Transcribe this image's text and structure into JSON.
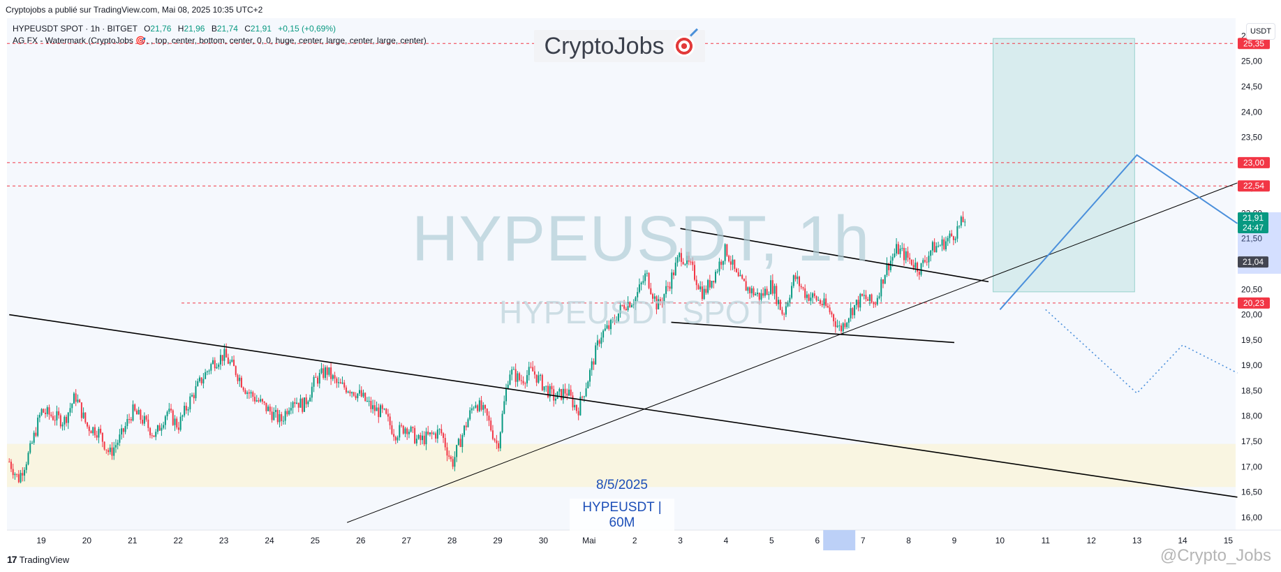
{
  "header": {
    "published": "Cryptojobs a publié sur TradingView.com, Mai 08, 2025 10:35 UTC+2"
  },
  "legend": {
    "symbol": "HYPEUSDT SPOT · 1h · BITGET",
    "open_key": "O",
    "open": "21,76",
    "high_key": "H",
    "high": "21,96",
    "low_key": "B",
    "low": "21,74",
    "close_key": "C",
    "close": "21,91",
    "change": "+0,15 (+0,69%)",
    "indicator": "AG FX - Watermark (CryptoJobs 🎯, , top, center, bottom, center, 0, 0, huge, center, large, center, large, center)"
  },
  "brand": {
    "text": "CryptoJobs",
    "icon": "target-icon"
  },
  "watermark": {
    "main": "HYPEUSDT, 1h",
    "sub": "HYPEUSDT SPOT"
  },
  "notes": {
    "date": "8/5/2025",
    "pair": "HYPEUSDT | 60M"
  },
  "currency_button": "USDT",
  "footer": {
    "logo_mark": "17",
    "logo_text": "TradingView",
    "credit": "@Crypto_Jobs"
  },
  "colors": {
    "up": "#089981",
    "down": "#f23645",
    "level_line": "#f23645",
    "trend_line": "#000000",
    "projection": "#4a8fdb",
    "target_box": "rgba(8,153,129,0.12)",
    "support_zone": "rgba(255,242,190,0.45)",
    "background": "#f5f8fd"
  },
  "chart_data": {
    "type": "candlestick",
    "symbol": "HYPEUSDT",
    "timeframe": "1h",
    "y_axis": {
      "ticks": [
        "16,00",
        "16,50",
        "17,00",
        "17,50",
        "18,00",
        "18,50",
        "19,00",
        "19,50",
        "20,00",
        "20,50",
        "21,00",
        "21,50",
        "22,00",
        "22,50",
        "23,00",
        "23,50",
        "24,00",
        "24,50",
        "25,00",
        "25,50"
      ],
      "range": [
        15.75,
        25.85
      ]
    },
    "x_axis": {
      "ticks": [
        "19",
        "20",
        "21",
        "22",
        "23",
        "24",
        "25",
        "26",
        "27",
        "28",
        "29",
        "30",
        "Mai",
        "2",
        "3",
        "4",
        "5",
        "6",
        "7",
        "8",
        "9",
        "10",
        "11",
        "12",
        "13",
        "14",
        "15"
      ],
      "highlight_tick": "7"
    },
    "price_levels": [
      {
        "value": 25.35,
        "label": "25,35"
      },
      {
        "value": 23.0,
        "label": "23,00"
      },
      {
        "value": 22.54,
        "label": "22,54"
      },
      {
        "value": 20.23,
        "label": "20,23"
      }
    ],
    "price_badges": [
      {
        "value": 21.91,
        "label": "21,91",
        "sub": "24:47",
        "color": "#089981"
      },
      {
        "value": 21.04,
        "label": "21,04",
        "color": "#434651"
      }
    ],
    "candles": {
      "start_day": 18.3,
      "step_days": 0.0417,
      "close_points": [
        [
          18.3,
          17.1
        ],
        [
          18.5,
          16.75
        ],
        [
          18.75,
          17.3
        ],
        [
          19.0,
          18.1
        ],
        [
          19.25,
          18.0
        ],
        [
          19.5,
          17.9
        ],
        [
          19.75,
          18.4
        ],
        [
          20.0,
          17.8
        ],
        [
          20.25,
          17.7
        ],
        [
          20.5,
          17.25
        ],
        [
          20.75,
          17.6
        ],
        [
          21.0,
          18.1
        ],
        [
          21.25,
          17.9
        ],
        [
          21.5,
          17.6
        ],
        [
          21.75,
          18.1
        ],
        [
          22.0,
          17.8
        ],
        [
          22.25,
          18.3
        ],
        [
          22.5,
          18.7
        ],
        [
          22.75,
          19.05
        ],
        [
          23.0,
          19.2
        ],
        [
          23.25,
          18.9
        ],
        [
          23.5,
          18.5
        ],
        [
          23.75,
          18.3
        ],
        [
          24.0,
          18.1
        ],
        [
          24.25,
          17.9
        ],
        [
          24.5,
          18.35
        ],
        [
          24.75,
          18.2
        ],
        [
          25.0,
          18.7
        ],
        [
          25.25,
          18.9
        ],
        [
          25.5,
          18.6
        ],
        [
          25.75,
          18.55
        ],
        [
          26.0,
          18.4
        ],
        [
          26.25,
          18.15
        ],
        [
          26.5,
          18.05
        ],
        [
          26.75,
          17.65
        ],
        [
          27.0,
          17.8
        ],
        [
          27.25,
          17.5
        ],
        [
          27.5,
          17.6
        ],
        [
          27.75,
          17.7
        ],
        [
          28.0,
          17.05
        ],
        [
          28.25,
          17.7
        ],
        [
          28.5,
          18.3
        ],
        [
          28.75,
          18.0
        ],
        [
          29.0,
          17.4
        ],
        [
          29.25,
          18.9
        ],
        [
          29.5,
          18.7
        ],
        [
          29.75,
          18.9
        ],
        [
          30.0,
          18.6
        ],
        [
          30.25,
          18.35
        ],
        [
          30.5,
          18.5
        ],
        [
          30.75,
          18.1
        ],
        [
          31.0,
          18.8
        ],
        [
          31.25,
          19.6
        ],
        [
          31.5,
          19.8
        ],
        [
          31.75,
          20.2
        ],
        [
          32.0,
          20.3
        ],
        [
          32.25,
          20.8
        ],
        [
          32.5,
          20.15
        ],
        [
          32.75,
          20.6
        ],
        [
          33.0,
          21.2
        ],
        [
          33.25,
          20.9
        ],
        [
          33.5,
          20.4
        ],
        [
          33.75,
          20.8
        ],
        [
          34.0,
          21.3
        ],
        [
          34.25,
          20.7
        ],
        [
          34.5,
          20.5
        ],
        [
          34.75,
          20.35
        ],
        [
          35.0,
          20.6
        ],
        [
          35.25,
          20.0
        ],
        [
          35.5,
          20.75
        ],
        [
          35.75,
          20.4
        ],
        [
          36.0,
          20.3
        ],
        [
          36.25,
          20.1
        ],
        [
          36.5,
          19.7
        ],
        [
          36.75,
          20.1
        ],
        [
          37.0,
          20.35
        ],
        [
          37.25,
          20.2
        ],
        [
          37.5,
          20.9
        ],
        [
          37.75,
          21.3
        ],
        [
          38.0,
          21.1
        ],
        [
          38.25,
          20.9
        ],
        [
          38.5,
          21.3
        ],
        [
          38.75,
          21.4
        ],
        [
          39.0,
          21.6
        ],
        [
          39.25,
          21.92
        ]
      ]
    },
    "trend_lines": [
      {
        "from": [
          18.3,
          20.0
        ],
        "to": [
          45.2,
          16.4
        ]
      },
      {
        "from": [
          25.7,
          15.9
        ],
        "to": [
          45.2,
          22.6
        ]
      },
      {
        "from": [
          33.0,
          21.7
        ],
        "to": [
          39.75,
          20.65
        ]
      },
      {
        "from": [
          32.8,
          19.85
        ],
        "to": [
          39.0,
          19.45
        ]
      }
    ],
    "projection_solid": [
      [
        40.0,
        20.1
      ],
      [
        43.0,
        23.15
      ],
      [
        45.2,
        21.8
      ]
    ],
    "projection_dotted": [
      [
        41.0,
        20.1
      ],
      [
        43.0,
        18.45
      ],
      [
        44.0,
        19.4
      ],
      [
        45.2,
        18.85
      ]
    ],
    "target_box": {
      "x0": 39.85,
      "x1": 42.95,
      "y0": 20.45,
      "y1": 25.45
    },
    "support_zone": {
      "y0": 16.6,
      "y1": 17.45
    }
  }
}
